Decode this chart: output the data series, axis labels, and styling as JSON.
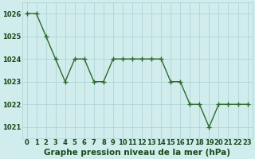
{
  "hours": [
    0,
    1,
    2,
    3,
    4,
    5,
    6,
    7,
    8,
    9,
    10,
    11,
    12,
    13,
    14,
    15,
    16,
    17,
    18,
    19,
    20,
    21,
    22,
    23
  ],
  "pressure": [
    1026,
    1026,
    1025,
    1024,
    1023,
    1024,
    1024,
    1023,
    1023,
    1024,
    1024,
    1024,
    1024,
    1024,
    1024,
    1023,
    1023,
    1022,
    1022,
    1021,
    1022,
    1022,
    1022,
    1022
  ],
  "line_color": "#2d6a2d",
  "marker_color": "#2d6a2d",
  "bg_color": "#d0ecec",
  "grid_color": "#aad0d0",
  "xlabel": "Graphe pression niveau de la mer (hPa)",
  "xlabel_color": "#1a4a1a",
  "ylim_min": 1020.5,
  "ylim_max": 1026.5,
  "yticks": [
    1021,
    1022,
    1023,
    1024,
    1025,
    1026
  ],
  "xticks": [
    0,
    1,
    2,
    3,
    4,
    5,
    6,
    7,
    8,
    9,
    10,
    11,
    12,
    13,
    14,
    15,
    16,
    17,
    18,
    19,
    20,
    21,
    22,
    23
  ],
  "tick_label_color": "#1a4a1a",
  "font_size_tick": 6,
  "font_size_xlabel": 7.5,
  "marker_size": 4,
  "line_width": 1.0
}
